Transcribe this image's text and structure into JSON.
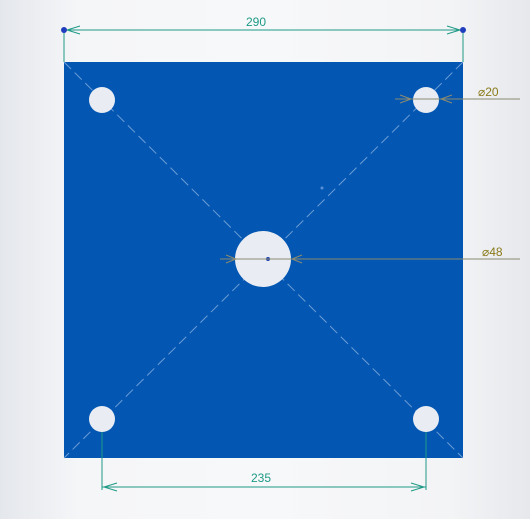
{
  "drawing": {
    "plate_color": "#0357b3",
    "dimension_color": "#1e9a86",
    "callout_text_color": "#8a7a1a",
    "hole_color": "#e9ecf2",
    "dimensions": {
      "overall_width": "290",
      "hole_spacing": "235",
      "small_hole_diameter": "⌀20",
      "center_hole_diameter": "⌀48"
    }
  }
}
